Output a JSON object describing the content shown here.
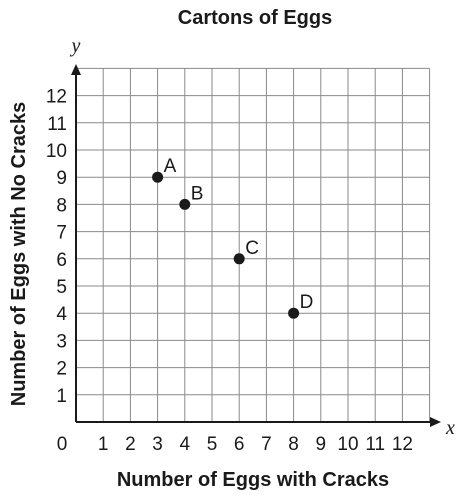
{
  "chart_data": {
    "type": "scatter",
    "title": "Cartons of Eggs",
    "xlabel": "Number of Eggs with Cracks",
    "ylabel": "Number of Eggs with No Cracks",
    "x_axis_letter": "x",
    "y_axis_letter": "y",
    "origin_label": "0",
    "xlim": [
      0,
      13
    ],
    "ylim": [
      0,
      13
    ],
    "x_ticks": [
      "1",
      "2",
      "3",
      "4",
      "5",
      "6",
      "7",
      "8",
      "9",
      "10",
      "11",
      "12"
    ],
    "y_ticks": [
      "1",
      "2",
      "3",
      "4",
      "5",
      "6",
      "7",
      "8",
      "9",
      "10",
      "11",
      "12"
    ],
    "grid": true,
    "points": [
      {
        "label": "A",
        "x": 3,
        "y": 9
      },
      {
        "label": "B",
        "x": 4,
        "y": 8
      },
      {
        "label": "C",
        "x": 6,
        "y": 6
      },
      {
        "label": "D",
        "x": 8,
        "y": 4
      }
    ],
    "colors": {
      "point": "#1a1a1a",
      "grid": "#8a8a8a",
      "axis": "#1a1a1a"
    }
  }
}
